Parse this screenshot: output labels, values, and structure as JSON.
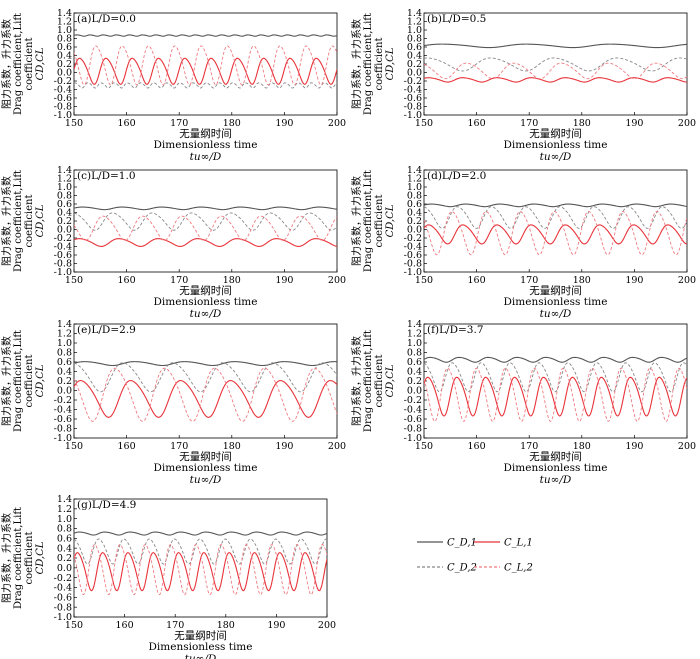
{
  "legend": {
    "items": [
      {
        "label": "C_D,1",
        "color": "#555555",
        "dash": "solid"
      },
      {
        "label": "C_L,1",
        "color": "#e8333a",
        "dash": "solid"
      },
      {
        "label": "C_D,2",
        "color": "#888888",
        "dash": "dash"
      },
      {
        "label": "C_L,2",
        "color": "#f07a80",
        "dash": "dash"
      }
    ]
  },
  "chart_data": [
    {
      "type": "line",
      "panel_label": "(a)",
      "param": "L/D=0.0",
      "xlabel_cn": "无量纲时间",
      "xlabel_en": "Dimensionless time",
      "xlabel_sym": "tu∞/D",
      "ylabel_cn": "阻力系数，升力系数",
      "ylabel_en1": "Drag coefficient,Lift",
      "ylabel_en2": "coefficient",
      "ylabel_sym": "CD,CL",
      "xlim": [
        150,
        200
      ],
      "ylim": [
        -1.0,
        1.4
      ],
      "xticks": [
        150,
        160,
        170,
        180,
        190,
        200
      ],
      "yticks": [
        -1.0,
        -0.8,
        -0.6,
        -0.4,
        -0.2,
        0.0,
        0.2,
        0.4,
        0.6,
        0.8,
        1.0,
        1.2,
        1.4
      ],
      "series": [
        {
          "name": "C_D,1",
          "mean": 0.87,
          "amp": 0.015,
          "period": 2.5,
          "phase": 0
        },
        {
          "name": "C_L,1",
          "mean": 0.05,
          "amp": 0.3,
          "period": 5.0,
          "phase": 0
        },
        {
          "name": "C_D,2",
          "mean": -0.3,
          "amp": 0.06,
          "period": 2.5,
          "phase": 1
        },
        {
          "name": "C_L,2",
          "mean": 0.2,
          "amp": 0.45,
          "period": 5.0,
          "phase": 2.4
        }
      ]
    },
    {
      "type": "line",
      "panel_label": "(b)",
      "param": "L/D=0.5",
      "xlabel_cn": "无量纲时间",
      "xlabel_en": "Dimensionless time",
      "xlabel_sym": "tu∞/D",
      "ylabel_cn": "阻力系数，升力系数",
      "ylabel_en1": "Drag coefficient,Lift",
      "ylabel_en2": "coefficient",
      "ylabel_sym": "CD,CL",
      "xlim": [
        150,
        200
      ],
      "ylim": [
        -1.0,
        1.4
      ],
      "xticks": [
        150,
        160,
        170,
        180,
        190,
        200
      ],
      "yticks": [
        -1.0,
        -0.8,
        -0.6,
        -0.4,
        -0.2,
        0.0,
        0.2,
        0.4,
        0.6,
        0.8,
        1.0,
        1.2,
        1.4
      ],
      "series": [
        {
          "name": "C_D,1",
          "mean": 0.63,
          "amp": 0.04,
          "period": 16,
          "phase": 0
        },
        {
          "name": "C_L,1",
          "mean": -0.17,
          "amp": 0.05,
          "period": 6.5,
          "phase": 0.5
        },
        {
          "name": "C_D,2",
          "mean": 0.2,
          "amp": 0.15,
          "period": 12,
          "phase": 1
        },
        {
          "name": "C_L,2",
          "mean": 0.05,
          "amp": 0.18,
          "period": 9,
          "phase": 2
        }
      ]
    },
    {
      "type": "line",
      "panel_label": "(c)",
      "param": "L/D=1.0",
      "xlabel_cn": "无量纲时间",
      "xlabel_en": "Dimensionless time",
      "xlabel_sym": "tu∞/D",
      "ylabel_cn": "阻力系数，升力系数",
      "ylabel_en1": "Drag coefficient,Lift",
      "ylabel_en2": "coefficient",
      "ylabel_sym": "CD,CL",
      "xlim": [
        150,
        200
      ],
      "ylim": [
        -1.0,
        1.4
      ],
      "xticks": [
        150,
        160,
        170,
        180,
        190,
        200
      ],
      "yticks": [
        -1.0,
        -0.8,
        -0.6,
        -0.4,
        -0.2,
        0.0,
        0.2,
        0.4,
        0.6,
        0.8,
        1.0,
        1.2,
        1.4
      ],
      "series": [
        {
          "name": "C_D,1",
          "mean": 0.5,
          "amp": 0.03,
          "period": 7.5,
          "phase": 0
        },
        {
          "name": "C_L,1",
          "mean": -0.3,
          "amp": 0.09,
          "period": 7.5,
          "phase": 0.5
        },
        {
          "name": "C_D,2",
          "mean": 0.2,
          "amp": 0.2,
          "period": 7.5,
          "phase": 1.5
        },
        {
          "name": "C_L,2",
          "mean": 0.05,
          "amp": 0.28,
          "period": 7.5,
          "phase": 3
        }
      ]
    },
    {
      "type": "line",
      "panel_label": "(d)",
      "param": "L/D=2.0",
      "xlabel_cn": "无量纲时间",
      "xlabel_en": "Dimensionless time",
      "xlabel_sym": "tu∞/D",
      "ylabel_cn": "阻力系数，升力系数",
      "ylabel_en1": "Drag coefficient,Lift",
      "ylabel_en2": "coefficient",
      "ylabel_sym": "CD,CL",
      "xlim": [
        150,
        200
      ],
      "ylim": [
        -1.0,
        1.4
      ],
      "xticks": [
        150,
        160,
        170,
        180,
        190,
        200
      ],
      "yticks": [
        -1.0,
        -0.8,
        -0.6,
        -0.4,
        -0.2,
        0.0,
        0.2,
        0.4,
        0.6,
        0.8,
        1.0,
        1.2,
        1.4
      ],
      "series": [
        {
          "name": "C_D,1",
          "mean": 0.57,
          "amp": 0.03,
          "period": 6.5,
          "phase": 0
        },
        {
          "name": "C_L,1",
          "mean": -0.1,
          "amp": 0.22,
          "period": 6.5,
          "phase": 0.5
        },
        {
          "name": "C_D,2",
          "mean": 0.3,
          "amp": 0.25,
          "period": 6.5,
          "phase": 1.5
        },
        {
          "name": "C_L,2",
          "mean": -0.05,
          "amp": 0.5,
          "period": 6.5,
          "phase": 2.5
        }
      ]
    },
    {
      "type": "line",
      "panel_label": "(e)",
      "param": "L/D=2.9",
      "xlabel_cn": "无量纲时间",
      "xlabel_en": "Dimensionless time",
      "xlabel_sym": "tu∞/D",
      "ylabel_cn": "阻力系数，升力系数",
      "ylabel_en1": "Drag coefficient,Lift",
      "ylabel_en2": "coefficient",
      "ylabel_sym": "CD,CL",
      "xlim": [
        150,
        200
      ],
      "ylim": [
        -1.0,
        1.4
      ],
      "xticks": [
        150,
        160,
        170,
        180,
        190,
        200
      ],
      "yticks": [
        -1.0,
        -0.8,
        -0.6,
        -0.4,
        -0.2,
        0.0,
        0.2,
        0.4,
        0.6,
        0.8,
        1.0,
        1.2,
        1.4
      ],
      "series": [
        {
          "name": "C_D,1",
          "mean": 0.57,
          "amp": 0.04,
          "period": 9.5,
          "phase": 0
        },
        {
          "name": "C_L,1",
          "mean": -0.15,
          "amp": 0.38,
          "period": 9.5,
          "phase": 0.5
        },
        {
          "name": "C_D,2",
          "mean": 0.3,
          "amp": 0.3,
          "period": 9.5,
          "phase": 1.5
        },
        {
          "name": "C_L,2",
          "mean": -0.05,
          "amp": 0.55,
          "period": 9.5,
          "phase": 2.5
        }
      ]
    },
    {
      "type": "line",
      "panel_label": "(f)",
      "param": "L/D=3.7",
      "xlabel_cn": "无量纲时间",
      "xlabel_en": "Dimensionless time",
      "xlabel_sym": "tu∞/D",
      "ylabel_cn": "阻力系数，升力系数",
      "ylabel_en1": "Drag coefficient,Lift",
      "ylabel_en2": "coefficient",
      "ylabel_sym": "CD,CL",
      "xlim": [
        150,
        200
      ],
      "ylim": [
        -1.0,
        1.4
      ],
      "xticks": [
        150,
        160,
        170,
        180,
        190,
        200
      ],
      "yticks": [
        -1.0,
        -0.8,
        -0.6,
        -0.4,
        -0.2,
        0.0,
        0.2,
        0.4,
        0.6,
        0.8,
        1.0,
        1.2,
        1.4
      ],
      "series": [
        {
          "name": "C_D,1",
          "mean": 0.65,
          "amp": 0.05,
          "period": 5.5,
          "phase": 0
        },
        {
          "name": "C_L,1",
          "mean": -0.1,
          "amp": 0.4,
          "period": 5.5,
          "phase": 0.5
        },
        {
          "name": "C_D,2",
          "mean": 0.3,
          "amp": 0.3,
          "period": 5.5,
          "phase": 1.5
        },
        {
          "name": "C_L,2",
          "mean": -0.05,
          "amp": 0.55,
          "period": 5.5,
          "phase": 2.5
        }
      ]
    },
    {
      "type": "line",
      "panel_label": "(g)",
      "param": "L/D=4.9",
      "xlabel_cn": "无量纲时间",
      "xlabel_en": "Dimensionless time",
      "xlabel_sym": "tu∞/D",
      "ylabel_cn": "阻力系数，升力系数",
      "ylabel_en1": "Drag coefficient,Lift",
      "ylabel_en2": "coefficient",
      "ylabel_sym": "CD,CL",
      "xlim": [
        150,
        200
      ],
      "ylim": [
        -1.0,
        1.4
      ],
      "xticks": [
        150,
        160,
        170,
        180,
        190,
        200
      ],
      "yticks": [
        -1.0,
        -0.8,
        -0.6,
        -0.4,
        -0.2,
        0.0,
        0.2,
        0.4,
        0.6,
        0.8,
        1.0,
        1.2,
        1.4
      ],
      "series": [
        {
          "name": "C_D,1",
          "mean": 0.7,
          "amp": 0.03,
          "period": 5.0,
          "phase": 0
        },
        {
          "name": "C_L,1",
          "mean": -0.05,
          "amp": 0.38,
          "period": 5.0,
          "phase": 0.5
        },
        {
          "name": "C_D,2",
          "mean": 0.35,
          "amp": 0.25,
          "period": 5.0,
          "phase": 1.5
        },
        {
          "name": "C_L,2",
          "mean": 0.0,
          "amp": 0.5,
          "period": 5.0,
          "phase": 2.5
        }
      ]
    }
  ]
}
